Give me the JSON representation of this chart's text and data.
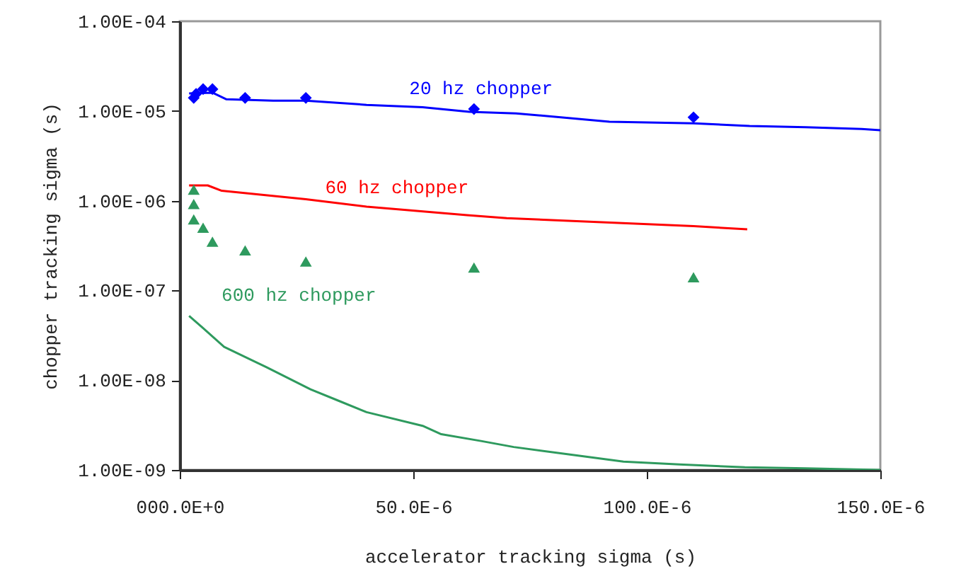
{
  "chart_data": {
    "type": "line",
    "xlabel": "accelerator tracking sigma (s)",
    "ylabel": "chopper tracking sigma (s)",
    "log": "y",
    "grid": false,
    "xlim": [
      0,
      0.00015
    ],
    "ylim": [
      1e-09,
      0.0001
    ],
    "xticks": [
      {
        "value": 0,
        "label": "000.0E+0"
      },
      {
        "value": 5e-05,
        "label": "50.0E-6"
      },
      {
        "value": 0.0001,
        "label": "100.0E-6"
      },
      {
        "value": 0.00015,
        "label": "150.0E-6"
      }
    ],
    "yticks": [
      {
        "value": 1e-09,
        "label": "1.00E-09"
      },
      {
        "value": 1e-08,
        "label": "1.00E-08"
      },
      {
        "value": 1e-07,
        "label": "1.00E-07"
      },
      {
        "value": 1e-06,
        "label": "1.00E-06"
      },
      {
        "value": 1e-05,
        "label": "1.00E-05"
      },
      {
        "value": 0.0001,
        "label": "1.00E-04"
      }
    ],
    "series": [
      {
        "name": "20 hz chopper",
        "type": "line",
        "color": "#0000ff",
        "marker": "none",
        "x": [
          2e-06,
          7e-06,
          1e-05,
          2e-05,
          2.7e-05,
          4e-05,
          5.2e-05,
          6.2e-05,
          7.2e-05,
          9.2e-05,
          0.00011,
          0.000122,
          0.000134,
          0.000146,
          0.00015
        ],
        "values": [
          1.57e-05,
          1.6e-05,
          1.35e-05,
          1.3e-05,
          1.3e-05,
          1.17e-05,
          1.1e-05,
          9.8e-06,
          9.4e-06,
          7.6e-06,
          7.3e-06,
          6.8e-06,
          6.6e-06,
          6.3e-06,
          6.1e-06
        ]
      },
      {
        "type": "scatter",
        "color": "#0000ff",
        "marker": "diamond",
        "x": [
          3e-06,
          3.5e-06,
          5e-06,
          7e-06,
          1.4e-05,
          2.7e-05,
          6.3e-05,
          0.00011
        ],
        "values": [
          1.4e-05,
          1.55e-05,
          1.75e-05,
          1.75e-05,
          1.4e-05,
          1.4e-05,
          1.05e-05,
          8.5e-06
        ]
      },
      {
        "name": "60 hz chopper",
        "type": "line",
        "color": "#ff0000",
        "marker": "none",
        "x": [
          2e-06,
          6e-06,
          9e-06,
          2.7e-05,
          4e-05,
          6.15e-05,
          7e-05,
          0.00011,
          0.0001215
        ],
        "values": [
          1.48e-06,
          1.48e-06,
          1.29e-06,
          1.04e-06,
          8.6e-07,
          6.9e-07,
          6.4e-07,
          5.2e-07,
          4.8e-07
        ]
      },
      {
        "name": "600 hz chopper",
        "type": "line",
        "color": "#2e9a5e",
        "marker": "none",
        "x": [
          2e-06,
          5e-06,
          9.5e-06,
          1.85e-05,
          2.8e-05,
          3.4e-05,
          4e-05,
          5.2e-05,
          5.6e-05,
          6.45e-05,
          7.15e-05,
          8.5e-05,
          9.5e-05,
          0.000107,
          0.000121,
          0.000134,
          0.00015
        ],
        "values": [
          5.2e-08,
          3.8e-08,
          2.35e-08,
          1.4e-08,
          7.9e-09,
          5.9e-09,
          4.4e-09,
          3.1e-09,
          2.5e-09,
          2.1e-09,
          1.8e-09,
          1.45e-09,
          1.24e-09,
          1.15e-09,
          1.07e-09,
          1.04e-09,
          1e-09
        ]
      },
      {
        "type": "scatter",
        "color": "#2e9a5e",
        "marker": "triangle",
        "x": [
          3e-06,
          3e-06,
          3e-06,
          5e-06,
          7e-06,
          1.4e-05,
          2.7e-05,
          6.3e-05,
          0.00011
        ],
        "values": [
          1.33e-06,
          9.2e-07,
          6.2e-07,
          5e-07,
          3.5e-07,
          2.8e-07,
          2.1e-07,
          1.8e-07,
          1.4e-07
        ]
      }
    ]
  }
}
